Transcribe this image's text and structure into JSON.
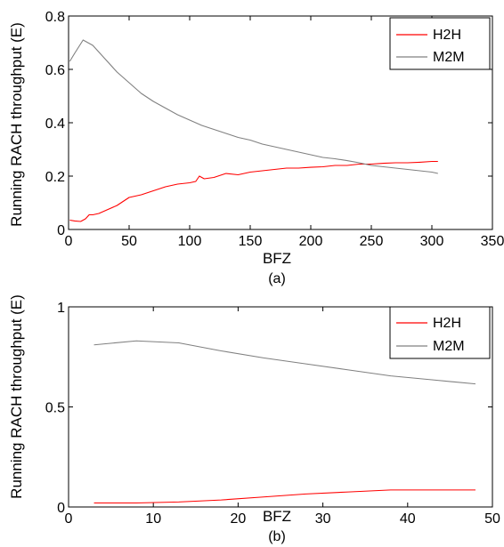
{
  "colors": {
    "h2h": "#ff0000",
    "m2m": "#808080",
    "axis": "#000000",
    "background": "#ffffff"
  },
  "chart_data": [
    {
      "type": "line",
      "caption": "(a)",
      "xlabel": "BFZ",
      "ylabel": "Running RACH throughput (E)",
      "xlim": [
        0,
        350
      ],
      "ylim": [
        0,
        0.8
      ],
      "xticks": [
        0,
        50,
        100,
        150,
        200,
        250,
        300,
        350
      ],
      "yticks": [
        0,
        0.2,
        0.4,
        0.6,
        0.8
      ],
      "xtick_labels": [
        "0",
        "50",
        "100",
        "150",
        "200",
        "250",
        "300",
        "350"
      ],
      "ytick_labels": [
        "0",
        "0.2",
        "0.4",
        "0.6",
        "0.8"
      ],
      "grid": false,
      "legend_position": "top-right",
      "series": [
        {
          "name": "H2H",
          "color": "#ff0000",
          "x": [
            1,
            5,
            10,
            14,
            17,
            20,
            25,
            30,
            40,
            50,
            60,
            70,
            80,
            90,
            100,
            105,
            108,
            112,
            120,
            130,
            140,
            150,
            160,
            170,
            180,
            190,
            200,
            210,
            220,
            230,
            240,
            250,
            260,
            270,
            280,
            290,
            300,
            305
          ],
          "y": [
            0.035,
            0.032,
            0.03,
            0.04,
            0.055,
            0.055,
            0.06,
            0.07,
            0.09,
            0.12,
            0.13,
            0.145,
            0.16,
            0.17,
            0.175,
            0.18,
            0.2,
            0.19,
            0.195,
            0.21,
            0.205,
            0.215,
            0.22,
            0.225,
            0.23,
            0.23,
            0.233,
            0.235,
            0.24,
            0.24,
            0.245,
            0.245,
            0.248,
            0.25,
            0.25,
            0.252,
            0.255,
            0.255
          ]
        },
        {
          "name": "M2M",
          "color": "#808080",
          "x": [
            1,
            5,
            12,
            20,
            30,
            40,
            50,
            60,
            70,
            80,
            90,
            100,
            110,
            120,
            130,
            140,
            150,
            160,
            170,
            180,
            190,
            200,
            210,
            220,
            230,
            240,
            250,
            260,
            270,
            280,
            290,
            300,
            305
          ],
          "y": [
            0.63,
            0.66,
            0.71,
            0.69,
            0.64,
            0.59,
            0.55,
            0.51,
            0.48,
            0.455,
            0.43,
            0.41,
            0.39,
            0.375,
            0.36,
            0.345,
            0.335,
            0.32,
            0.31,
            0.3,
            0.29,
            0.28,
            0.27,
            0.265,
            0.258,
            0.25,
            0.24,
            0.235,
            0.23,
            0.225,
            0.22,
            0.215,
            0.21
          ]
        }
      ]
    },
    {
      "type": "line",
      "caption": "(b)",
      "xlabel": "BFZ",
      "ylabel": "Running RACH throughput (E)",
      "xlim": [
        0,
        50
      ],
      "ylim": [
        0,
        1
      ],
      "xticks": [
        0,
        10,
        20,
        30,
        40,
        50
      ],
      "yticks": [
        0,
        0.5,
        1
      ],
      "xtick_labels": [
        "0",
        "10",
        "20",
        "30",
        "40",
        "50"
      ],
      "ytick_labels": [
        "0",
        "0.5",
        "1"
      ],
      "grid": false,
      "legend_position": "top-right",
      "series": [
        {
          "name": "H2H",
          "color": "#ff0000",
          "x": [
            3,
            8,
            13,
            18,
            23,
            28,
            33,
            38,
            43,
            48
          ],
          "y": [
            0.02,
            0.02,
            0.025,
            0.035,
            0.05,
            0.065,
            0.075,
            0.085,
            0.085,
            0.085
          ]
        },
        {
          "name": "M2M",
          "color": "#808080",
          "x": [
            3,
            8,
            13,
            18,
            23,
            28,
            33,
            38,
            43,
            48
          ],
          "y": [
            0.81,
            0.83,
            0.82,
            0.78,
            0.745,
            0.715,
            0.685,
            0.655,
            0.635,
            0.615
          ]
        }
      ]
    }
  ]
}
